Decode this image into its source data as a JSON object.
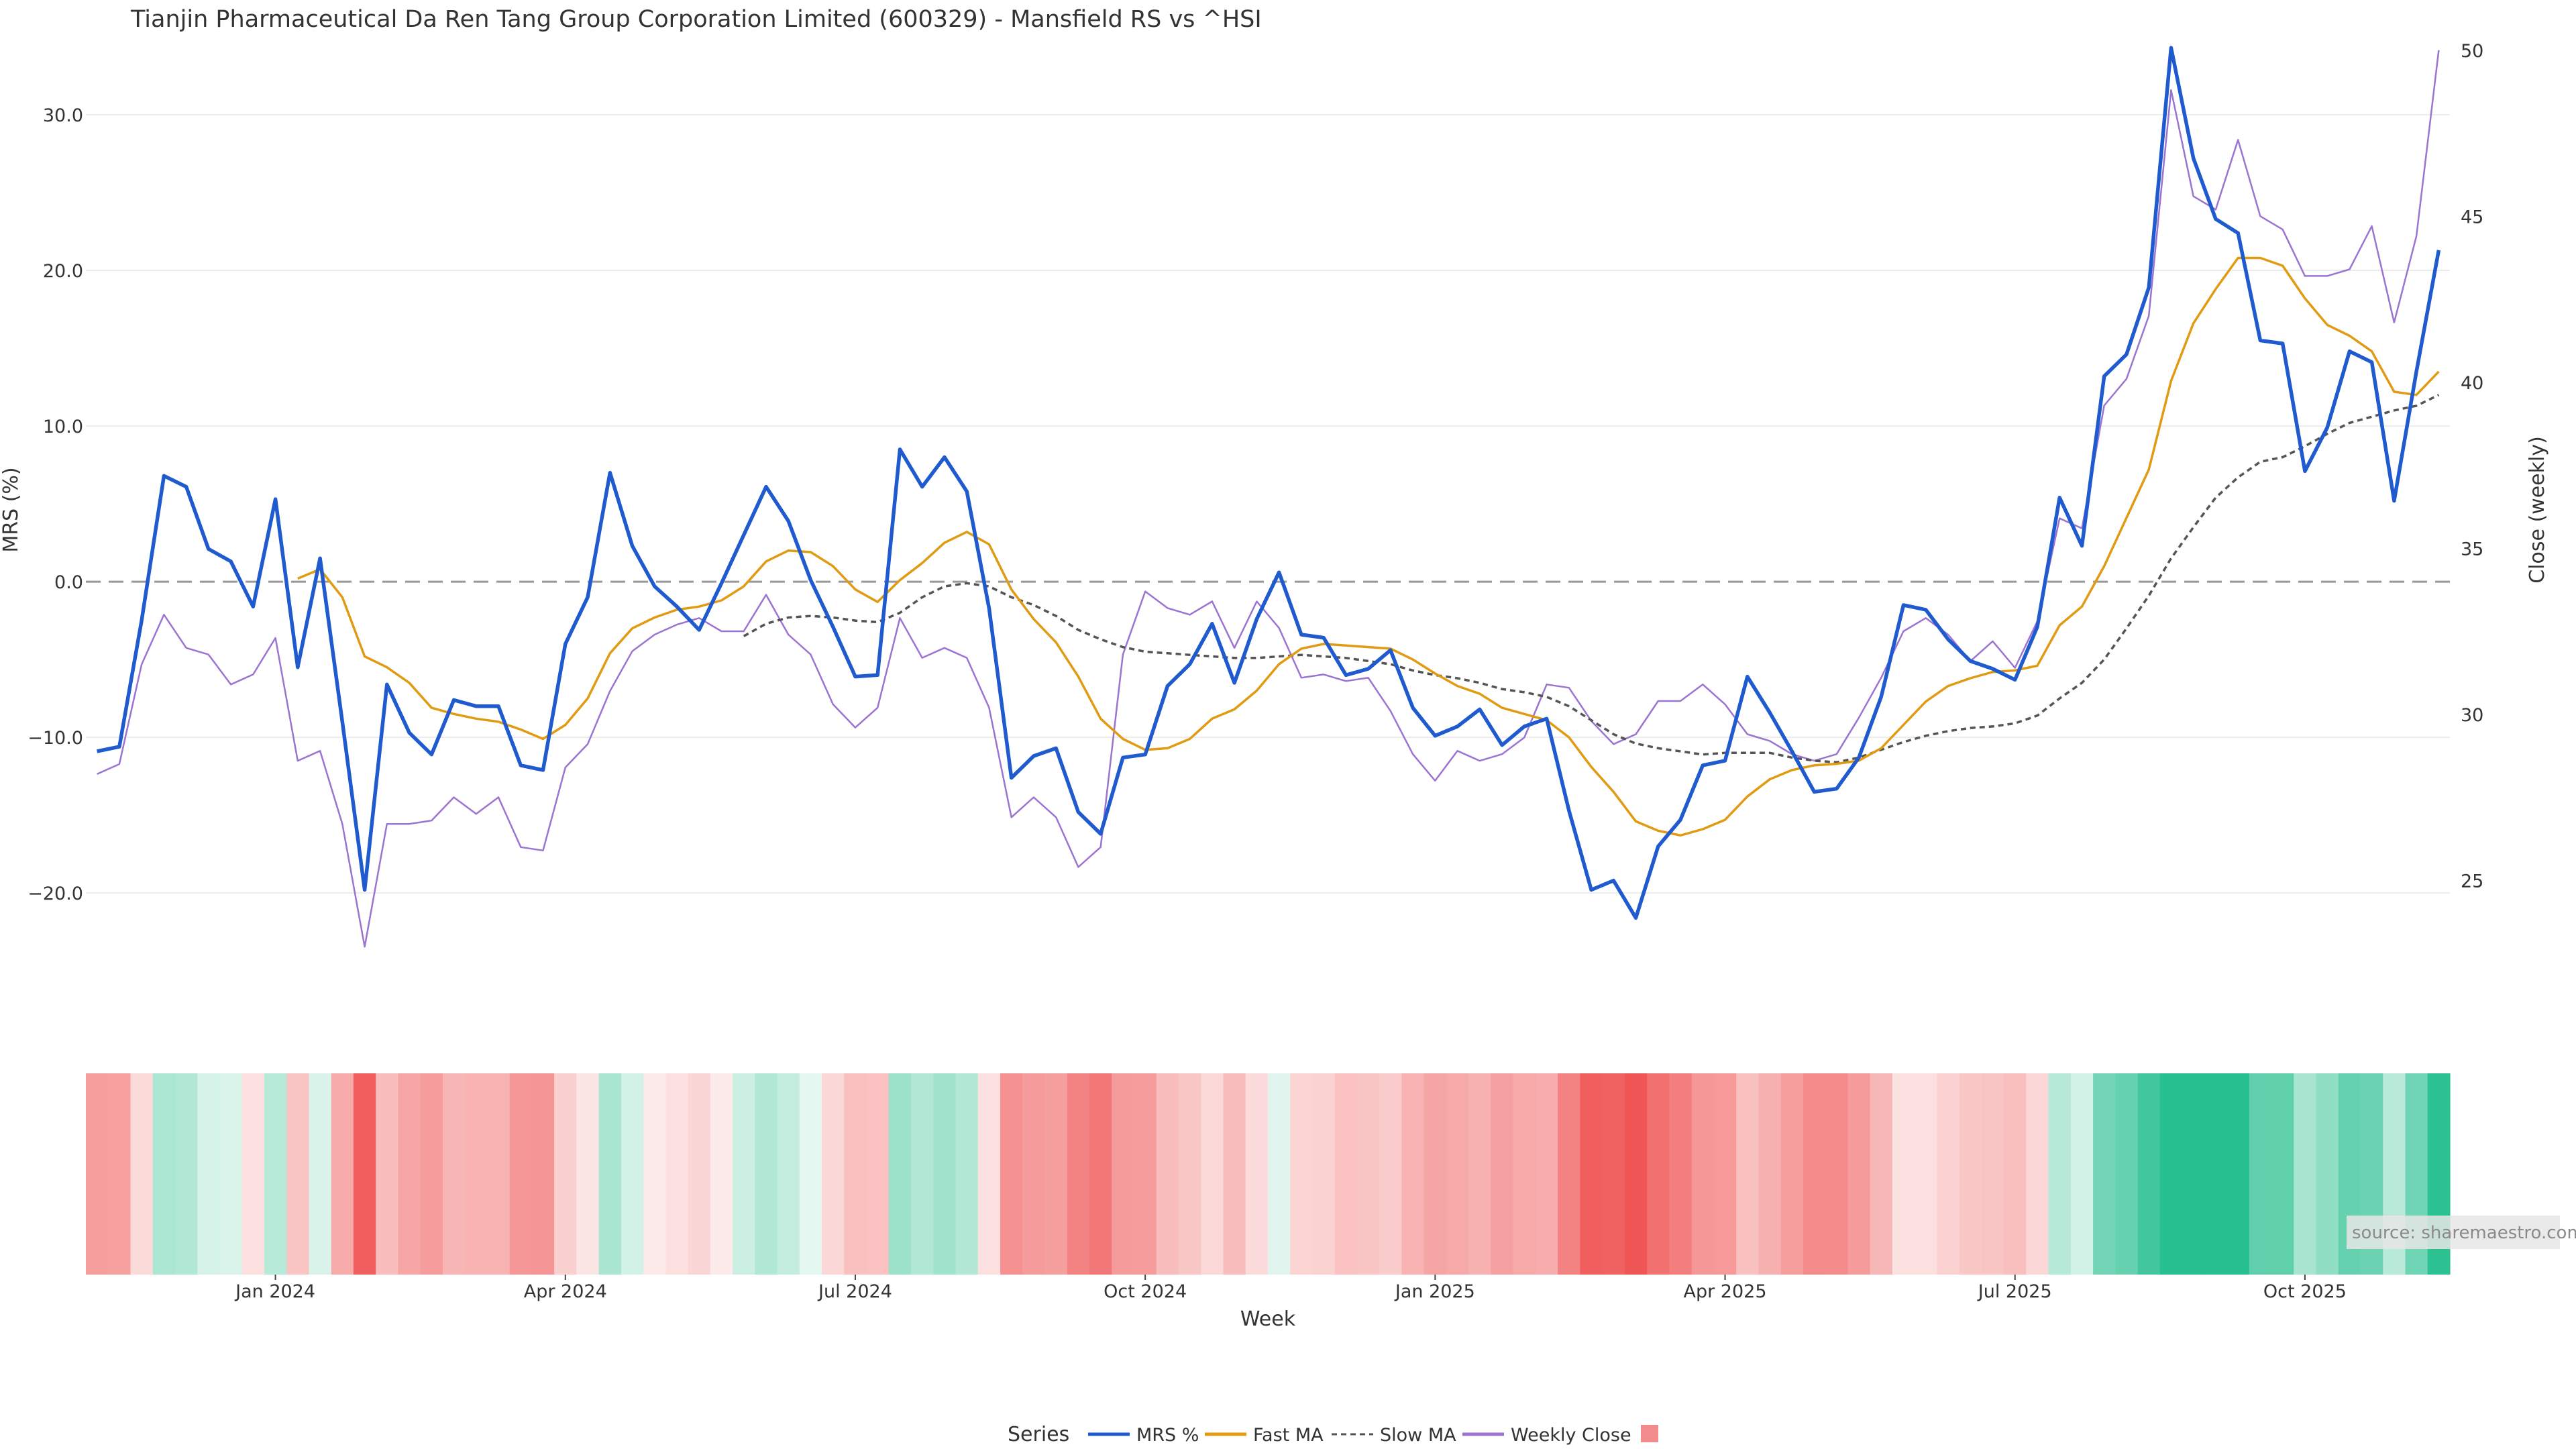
{
  "chart_data": {
    "type": "line",
    "title": "Tianjin Pharmaceutical Da Ren Tang Group Corporation Limited (600329) - Mansfield RS vs ^HSI",
    "xlabel": "Week",
    "ylabel_left": "MRS (%)",
    "ylabel_right": "Close (weekly)",
    "ylim_left": [
      -29,
      35
    ],
    "ylim_right": [
      20.4,
      50.4
    ],
    "yticks_left": [
      {
        "value": 30,
        "label": "30.0"
      },
      {
        "value": 20,
        "label": "20.0"
      },
      {
        "value": 10,
        "label": "10.0"
      },
      {
        "value": 0,
        "label": "0.0"
      },
      {
        "value": -10,
        "label": "−10.0"
      },
      {
        "value": -20,
        "label": "−20.0"
      }
    ],
    "yticks_right": [
      {
        "value": 50,
        "label": "50"
      },
      {
        "value": 45,
        "label": "45"
      },
      {
        "value": 40,
        "label": "40"
      },
      {
        "value": 35,
        "label": "35"
      },
      {
        "value": 30,
        "label": "30"
      },
      {
        "value": 25,
        "label": "25"
      }
    ],
    "xticks": [
      {
        "label": "Jan 2024",
        "week": 8
      },
      {
        "label": "Apr 2024",
        "week": 21
      },
      {
        "label": "Jul 2024",
        "week": 34
      },
      {
        "label": "Oct 2024",
        "week": 47
      },
      {
        "label": "Jan 2025",
        "week": 60
      },
      {
        "label": "Apr 2025",
        "week": 73
      },
      {
        "label": "Jul 2025",
        "week": 86
      },
      {
        "label": "Oct 2025",
        "week": 99
      }
    ],
    "grid": true,
    "zero_line": true,
    "series": [
      {
        "name": "MRS %",
        "color": "#1f5bcf",
        "axis": "left",
        "values": [
          -10.9,
          -10.6,
          -2.5,
          6.8,
          6.1,
          2.1,
          1.3,
          -1.6,
          5.3,
          -5.5,
          1.5,
          -9.0,
          -19.8,
          -6.6,
          -9.7,
          -11.1,
          -7.6,
          -8.0,
          -8.0,
          -11.8,
          -12.1,
          -4.0,
          -1.0,
          7.0,
          2.3,
          -0.3,
          -1.6,
          -3.1,
          -0.1,
          3.0,
          6.1,
          3.9,
          0.1,
          -2.9,
          -6.1,
          -6.0,
          8.5,
          6.1,
          8.0,
          5.8,
          -1.7,
          -12.6,
          -11.2,
          -10.7,
          -14.8,
          -16.2,
          -11.3,
          -11.1,
          -6.7,
          -5.3,
          -2.7,
          -6.5,
          -2.4,
          0.6,
          -3.4,
          -3.6,
          -6.0,
          -5.6,
          -4.4,
          -8.1,
          -9.9,
          -9.3,
          -8.2,
          -10.5,
          -9.3,
          -8.8,
          -14.7,
          -19.8,
          -19.2,
          -21.6,
          -17.0,
          -15.3,
          -11.8,
          -11.5,
          -6.1,
          -8.4,
          -10.9,
          -13.5,
          -13.3,
          -11.3,
          -7.4,
          -1.5,
          -1.8,
          -3.7,
          -5.1,
          -5.6,
          -6.3,
          -2.9,
          5.4,
          2.3,
          13.2,
          14.6,
          18.9,
          34.3,
          27.2,
          23.3,
          22.4,
          15.5,
          15.3,
          7.1,
          9.9,
          14.8,
          14.1,
          5.2,
          13.5,
          21.3
        ]
      },
      {
        "name": "Fast MA",
        "color": "#e09b13",
        "axis": "left",
        "values": [
          null,
          null,
          null,
          null,
          null,
          null,
          null,
          null,
          null,
          0.2,
          0.8,
          -1.0,
          -4.8,
          -5.5,
          -6.5,
          -8.1,
          -8.5,
          -8.8,
          -9.0,
          -9.5,
          -10.1,
          -9.2,
          -7.5,
          -4.6,
          -3.0,
          -2.3,
          -1.8,
          -1.6,
          -1.2,
          -0.3,
          1.3,
          2.0,
          1.9,
          1.0,
          -0.5,
          -1.3,
          0.1,
          1.2,
          2.5,
          3.2,
          2.4,
          -0.5,
          -2.4,
          -3.9,
          -6.1,
          -8.8,
          -10.1,
          -10.8,
          -10.7,
          -10.1,
          -8.8,
          -8.2,
          -7.0,
          -5.3,
          -4.3,
          -4.0,
          -4.1,
          -4.2,
          -4.3,
          -5.0,
          -5.9,
          -6.7,
          -7.2,
          -8.1,
          -8.5,
          -8.9,
          -10.0,
          -11.9,
          -13.5,
          -15.4,
          -16.0,
          -16.3,
          -15.9,
          -15.3,
          -13.8,
          -12.7,
          -12.1,
          -11.8,
          -11.7,
          -11.5,
          -10.7,
          -9.2,
          -7.7,
          -6.7,
          -6.2,
          -5.8,
          -5.7,
          -5.4,
          -2.8,
          -1.6,
          1.0,
          4.1,
          7.2,
          12.9,
          16.6,
          18.8,
          20.8,
          20.8,
          20.3,
          18.2,
          16.5,
          15.8,
          14.8,
          12.2,
          12.0,
          13.5
        ]
      },
      {
        "name": "Slow MA",
        "color": "#555555",
        "axis": "left",
        "dashed": true,
        "values": [
          null,
          null,
          null,
          null,
          null,
          null,
          null,
          null,
          null,
          null,
          null,
          null,
          null,
          null,
          null,
          null,
          null,
          null,
          null,
          null,
          null,
          null,
          null,
          null,
          null,
          null,
          null,
          null,
          null,
          -3.5,
          -2.7,
          -2.3,
          -2.2,
          -2.3,
          -2.5,
          -2.6,
          -2.0,
          -1.0,
          -0.3,
          -0.1,
          -0.3,
          -1.0,
          -1.5,
          -2.2,
          -3.1,
          -3.7,
          -4.2,
          -4.5,
          -4.6,
          -4.7,
          -4.8,
          -4.9,
          -4.9,
          -4.8,
          -4.7,
          -4.8,
          -4.9,
          -5.1,
          -5.3,
          -5.7,
          -6.0,
          -6.2,
          -6.5,
          -6.9,
          -7.1,
          -7.4,
          -8.0,
          -8.9,
          -9.8,
          -10.4,
          -10.7,
          -10.9,
          -11.1,
          -11.0,
          -11.0,
          -11.0,
          -11.3,
          -11.5,
          -11.6,
          -11.3,
          -10.8,
          -10.3,
          -9.9,
          -9.6,
          -9.4,
          -9.3,
          -9.1,
          -8.6,
          -7.5,
          -6.5,
          -5.0,
          -3.0,
          -0.9,
          1.5,
          3.5,
          5.4,
          6.7,
          7.7,
          8.0,
          8.7,
          9.5,
          10.2,
          10.6,
          11.0,
          11.3,
          12.0
        ]
      },
      {
        "name": "Weekly Close",
        "color": "#9b74d1",
        "axis": "right",
        "values": [
          28.2,
          28.5,
          31.5,
          33.0,
          32.0,
          31.8,
          30.9,
          31.2,
          32.3,
          28.6,
          28.9,
          26.7,
          23.0,
          26.7,
          26.7,
          26.8,
          27.5,
          27.0,
          27.5,
          26.0,
          25.9,
          28.4,
          29.1,
          30.7,
          31.9,
          32.4,
          32.7,
          32.9,
          32.5,
          32.5,
          33.6,
          32.4,
          31.8,
          30.3,
          29.6,
          30.2,
          32.9,
          31.7,
          32.0,
          31.7,
          30.2,
          26.9,
          27.5,
          26.9,
          25.4,
          26.0,
          31.8,
          33.7,
          33.2,
          33.0,
          33.4,
          32.0,
          33.4,
          32.6,
          31.1,
          31.2,
          31.0,
          31.1,
          30.1,
          28.8,
          28.0,
          28.9,
          28.6,
          28.8,
          29.3,
          30.9,
          30.8,
          29.8,
          29.1,
          29.4,
          30.4,
          30.4,
          30.9,
          30.3,
          29.4,
          29.2,
          28.8,
          28.6,
          28.8,
          29.9,
          31.1,
          32.5,
          32.9,
          32.4,
          31.6,
          32.2,
          31.4,
          32.8,
          35.9,
          35.6,
          39.3,
          40.1,
          42.0,
          48.8,
          45.6,
          45.2,
          47.3,
          45.0,
          44.6,
          43.2,
          43.2,
          43.4,
          44.7,
          41.8,
          44.4,
          50.0
        ]
      }
    ],
    "heatmap": {
      "description_source": "MRS % per week (strip coloured red for negative, green for positive)",
      "source_label": "source: sharemaestro.com"
    },
    "legend": {
      "title": "Series",
      "placement": "bottom-center",
      "items": [
        {
          "label": "MRS %",
          "color": "#1f5bcf",
          "style": "line"
        },
        {
          "label": "Fast MA",
          "color": "#e09b13",
          "style": "line"
        },
        {
          "label": "Slow MA",
          "color": "#555555",
          "style": "dashed"
        },
        {
          "label": "Weekly Close",
          "color": "#9b74d1",
          "style": "line"
        },
        {
          "label": "",
          "color": "#f28b8b",
          "style": "square"
        }
      ]
    }
  }
}
